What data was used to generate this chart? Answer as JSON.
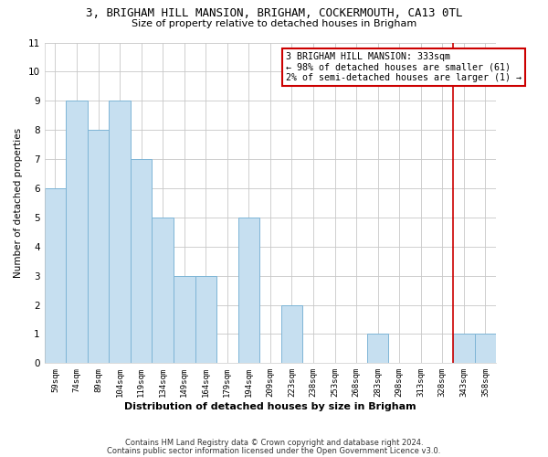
{
  "title": "3, BRIGHAM HILL MANSION, BRIGHAM, COCKERMOUTH, CA13 0TL",
  "subtitle": "Size of property relative to detached houses in Brigham",
  "xlabel": "Distribution of detached houses by size in Brigham",
  "ylabel": "Number of detached properties",
  "bar_labels": [
    "59sqm",
    "74sqm",
    "89sqm",
    "104sqm",
    "119sqm",
    "134sqm",
    "149sqm",
    "164sqm",
    "179sqm",
    "194sqm",
    "209sqm",
    "223sqm",
    "238sqm",
    "253sqm",
    "268sqm",
    "283sqm",
    "298sqm",
    "313sqm",
    "328sqm",
    "343sqm",
    "358sqm"
  ],
  "bar_values": [
    6,
    9,
    8,
    9,
    7,
    5,
    3,
    3,
    0,
    5,
    0,
    2,
    0,
    0,
    0,
    1,
    0,
    0,
    0,
    1,
    1
  ],
  "bar_color": "#c6dff0",
  "bar_edgecolor": "#7eb5d6",
  "property_line_x": 18.5,
  "property_line_color": "#cc0000",
  "ylim": [
    0,
    11
  ],
  "yticks": [
    0,
    1,
    2,
    3,
    4,
    5,
    6,
    7,
    8,
    9,
    10,
    11
  ],
  "annotation_box_text": "3 BRIGHAM HILL MANSION: 333sqm\n← 98% of detached houses are smaller (61)\n2% of semi-detached houses are larger (1) →",
  "footer_line1": "Contains HM Land Registry data © Crown copyright and database right 2024.",
  "footer_line2": "Contains public sector information licensed under the Open Government Licence v3.0.",
  "background_color": "#ffffff",
  "grid_color": "#c8c8c8"
}
